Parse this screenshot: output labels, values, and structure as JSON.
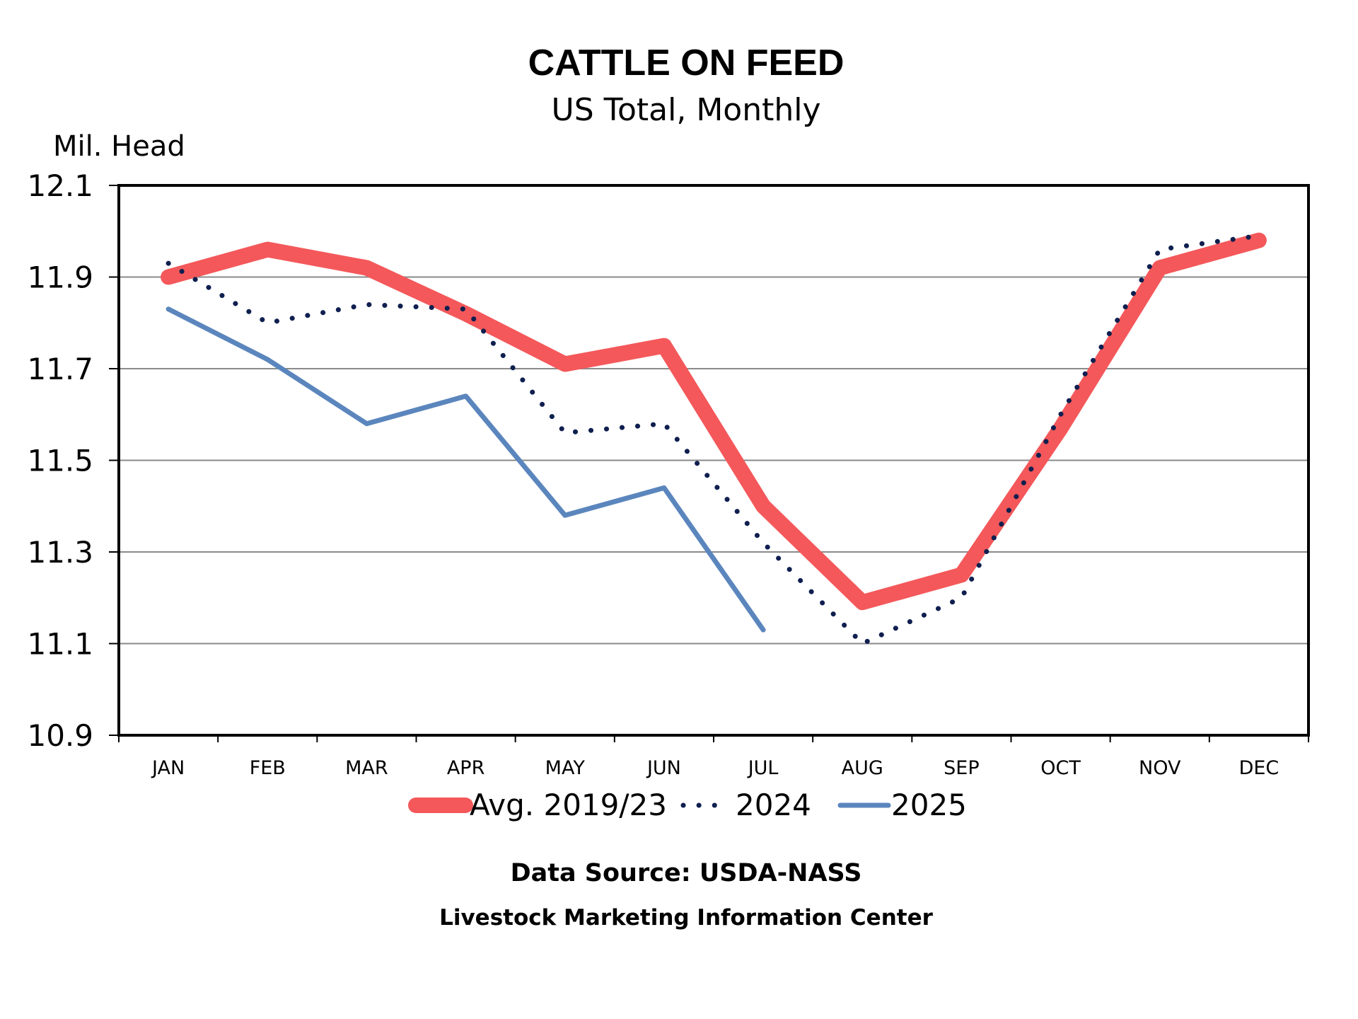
{
  "chart_data": {
    "type": "line",
    "title": "CATTLE ON FEED",
    "subtitle": "US Total, Monthly",
    "ylabel": "Mil. Head",
    "xlabel": "",
    "ylim": [
      10.9,
      12.1
    ],
    "yticks": [
      "12.1",
      "11.9",
      "11.7",
      "11.5",
      "11.3",
      "11.1",
      "10.9"
    ],
    "grid": true,
    "categories": [
      "JAN",
      "FEB",
      "MAR",
      "APR",
      "MAY",
      "JUN",
      "JUL",
      "AUG",
      "SEP",
      "OCT",
      "NOV",
      "DEC"
    ],
    "series": [
      {
        "name": "Avg. 2019/23",
        "color": "#f4585a",
        "style": "solid-thick",
        "values": [
          11.9,
          11.96,
          11.92,
          11.82,
          11.71,
          11.75,
          11.4,
          11.19,
          11.25,
          11.57,
          11.92,
          11.98
        ]
      },
      {
        "name": "2024",
        "color": "#0f1f4f",
        "style": "dotted",
        "values": [
          11.93,
          11.8,
          11.84,
          11.83,
          11.56,
          11.58,
          11.32,
          11.1,
          11.2,
          11.6,
          11.96,
          11.99
        ]
      },
      {
        "name": "2025",
        "color": "#5b86bd",
        "style": "solid",
        "values": [
          11.83,
          11.72,
          11.58,
          11.64,
          11.38,
          11.44,
          11.13,
          null,
          null,
          null,
          null,
          null
        ]
      }
    ],
    "legend": "bottom-center"
  },
  "footer": {
    "source": "Data Source:  USDA-NASS",
    "org": "Livestock Marketing Information Center"
  }
}
